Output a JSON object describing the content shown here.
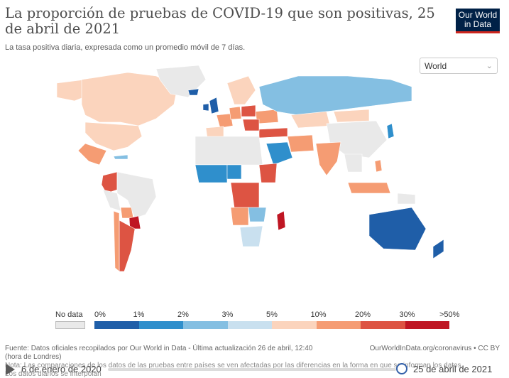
{
  "header": {
    "title": "La proporción de pruebas de COVID-19 que son positivas, 25 de abril de 2021",
    "subtitle": "La tasa positiva diaria, expresada como un promedio móvil de 7 días.",
    "logo_line1": "Our World",
    "logo_line2": "in Data"
  },
  "region_select": {
    "value": "World"
  },
  "legend": {
    "nodata_label": "No data",
    "bins": [
      {
        "from": "0%",
        "to": "1%",
        "color": "#1f5ea8"
      },
      {
        "from": "1%",
        "to": "2%",
        "color": "#2f8fcc"
      },
      {
        "from": "2%",
        "to": "3%",
        "color": "#84bfe2"
      },
      {
        "from": "3%",
        "to": "5%",
        "color": "#c9e0ef"
      },
      {
        "from": "5%",
        "to": "10%",
        "color": "#fbd4bd"
      },
      {
        "from": "10%",
        "to": "20%",
        "color": "#f59c73"
      },
      {
        "from": "20%",
        "to": "30%",
        "color": "#dd5443"
      },
      {
        "from": "30%",
        "to": ">50%",
        "color": "#bf1623"
      }
    ],
    "tick_labels": [
      "0%",
      "1%",
      "2%",
      "3%",
      "5%",
      "10%",
      "20%",
      "30%",
      ">50%"
    ]
  },
  "footer": {
    "source": "Fuente: Datos oficiales recopilados por Our World in Data - Última actualización 26 de abril, 12:40 (hora de Londres)",
    "source_line2": "(hora de Londres)",
    "note": "Nota: Las comparaciones de los datos de las pruebas entre países se ven afectadas por las diferencias en la forma en que se informan los datos.",
    "note_line2": "Los datos diarios se interpolan",
    "url": "OurWorldInData.org/coronavirus • CC BY"
  },
  "timeline": {
    "start": "6 de enero de 2020",
    "end": "25 de abril de 2021"
  },
  "map_colors": {
    "nodata": "#e9e9e9",
    "c0": "#1f5ea8",
    "c1": "#2f8fcc",
    "c2": "#84bfe2",
    "c3": "#c9e0ef",
    "c4": "#fbd4bd",
    "c5": "#f59c73",
    "c6": "#dd5443",
    "c7": "#bf1623"
  }
}
